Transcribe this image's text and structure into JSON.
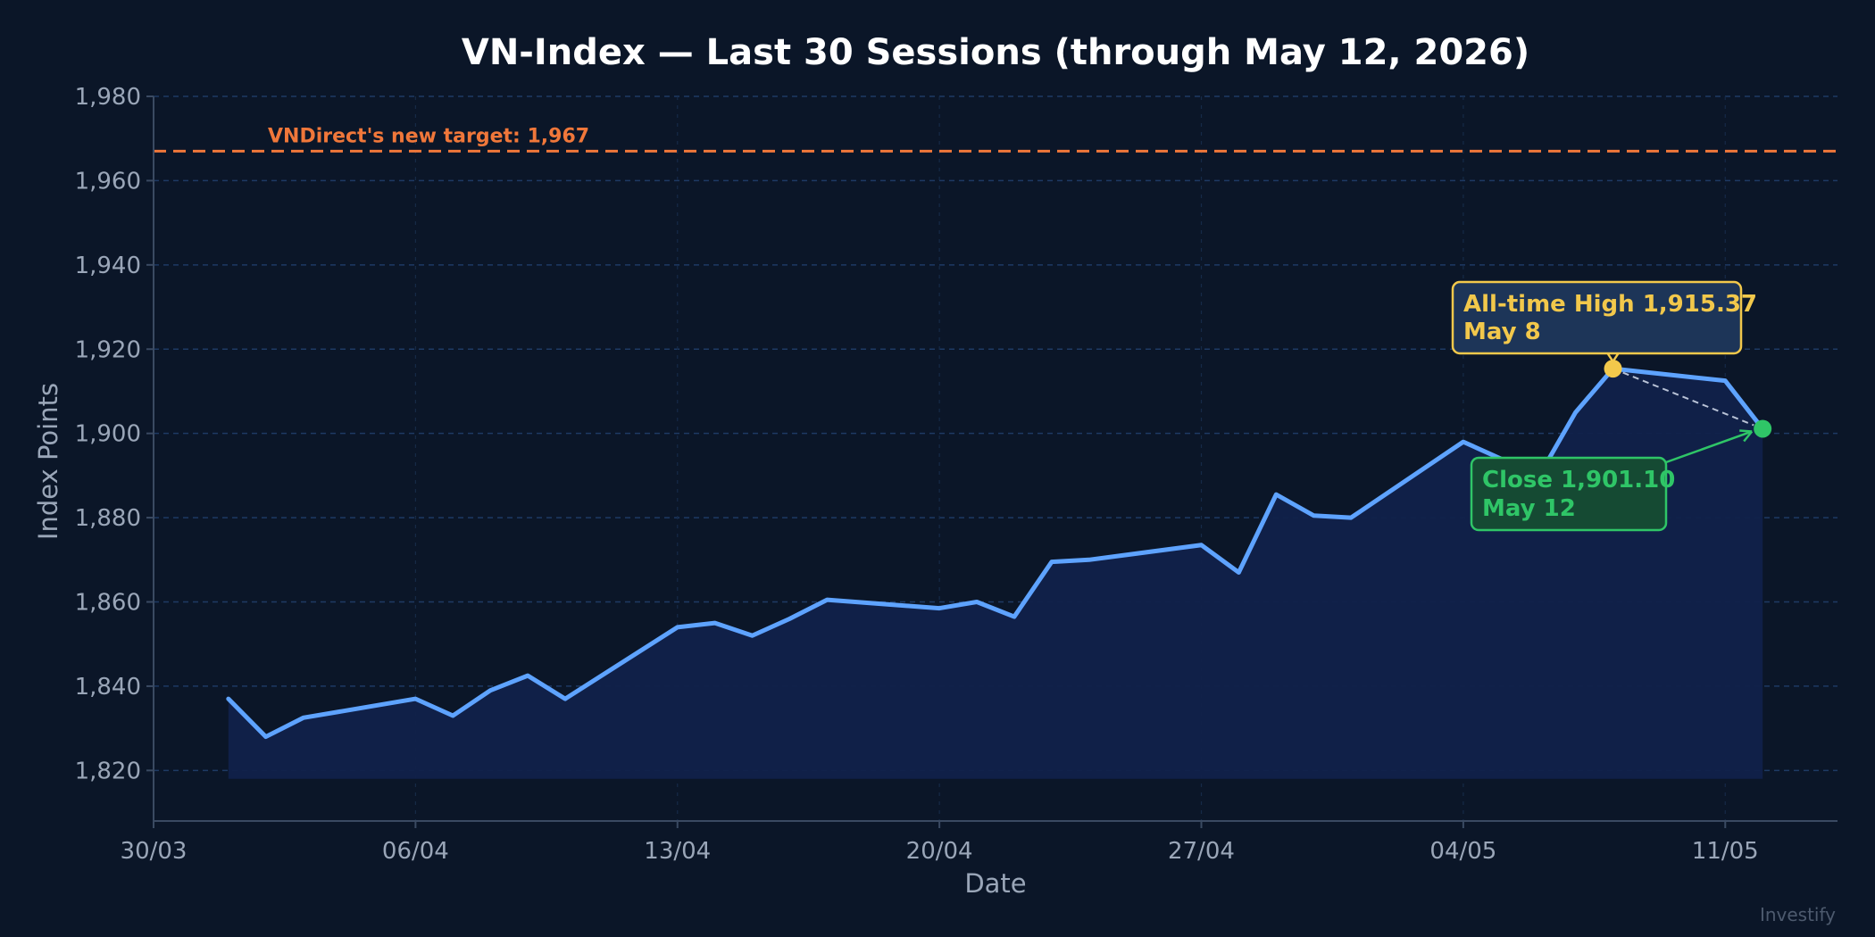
{
  "chart_data": {
    "type": "area",
    "title": "VN-Index — Last 30 Sessions (through May 12, 2026)",
    "xlabel": "Date",
    "ylabel": "Index Points",
    "x_range": [
      "2026-03-30",
      "2026-05-14"
    ],
    "ylim": [
      1808,
      1980
    ],
    "y_ticks": [
      1820,
      1840,
      1860,
      1880,
      1900,
      1920,
      1940,
      1960,
      1980
    ],
    "y_tick_labels": [
      "1,820",
      "1,840",
      "1,860",
      "1,880",
      "1,900",
      "1,920",
      "1,940",
      "1,960",
      "1,980"
    ],
    "x_ticks": [
      "2026-03-30",
      "2026-04-06",
      "2026-04-13",
      "2026-04-20",
      "2026-04-27",
      "2026-05-04",
      "2026-05-11"
    ],
    "x_tick_labels": [
      "30/03",
      "06/04",
      "13/04",
      "20/04",
      "27/04",
      "04/05",
      "11/05"
    ],
    "grid": true,
    "series": [
      {
        "color": "#5ea3ff",
        "fill_color": "#11214a",
        "x": [
          "2026-04-01",
          "2026-04-02",
          "2026-04-03",
          "2026-04-06",
          "2026-04-07",
          "2026-04-08",
          "2026-04-09",
          "2026-04-10",
          "2026-04-13",
          "2026-04-14",
          "2026-04-15",
          "2026-04-16",
          "2026-04-17",
          "2026-04-20",
          "2026-04-21",
          "2026-04-22",
          "2026-04-23",
          "2026-04-24",
          "2026-04-27",
          "2026-04-28",
          "2026-04-29",
          "2026-04-30",
          "2026-05-01",
          "2026-05-04",
          "2026-05-05",
          "2026-05-06",
          "2026-05-07",
          "2026-05-08",
          "2026-05-11",
          "2026-05-12"
        ],
        "values": [
          1837,
          1828,
          1832.5,
          1837,
          1833,
          1839,
          1842.5,
          1837,
          1854,
          1855,
          1852,
          1856,
          1860.5,
          1858.5,
          1860,
          1856.5,
          1869.5,
          1870,
          1873.5,
          1867,
          1885.5,
          1880.5,
          1880,
          1898,
          1894,
          1889.5,
          1905,
          1915.37,
          1912.5,
          1901.1
        ]
      }
    ],
    "reference_line": {
      "y": 1967,
      "label": "VNDirect's new target: 1,967",
      "color": "#f0773a"
    },
    "annotations": [
      {
        "kind": "high",
        "x": "2026-05-08",
        "y": 1915.37,
        "line1": "All-time High  1,915.37",
        "line2": "May 8",
        "color": "#f2c84b"
      },
      {
        "kind": "close",
        "x": "2026-05-12",
        "y": 1901.1,
        "line1": "Close  1,901.10",
        "line2": "May 12",
        "color": "#2fc567"
      }
    ]
  },
  "watermark": "Investify"
}
